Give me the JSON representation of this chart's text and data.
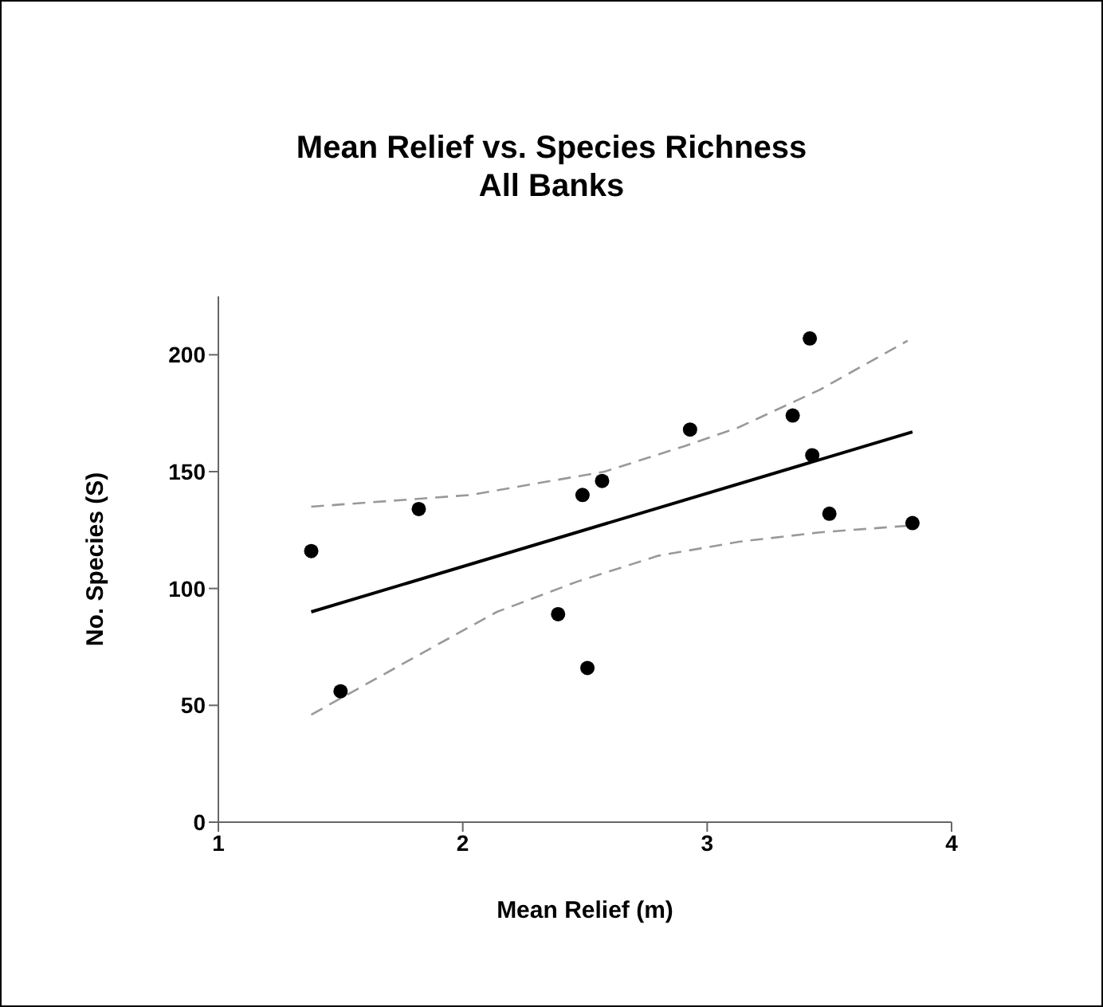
{
  "chart_data": {
    "type": "scatter",
    "title": "Mean Relief vs. Species Richness",
    "subtitle": "All Banks",
    "xlabel": "Mean Relief (m)",
    "ylabel": "No. Species (S)",
    "xlim": [
      1,
      4
    ],
    "ylim": [
      0,
      225
    ],
    "xticks": [
      1,
      2,
      3,
      4
    ],
    "yticks": [
      0,
      50,
      100,
      150,
      200
    ],
    "grid": false,
    "legend": false,
    "series": [
      {
        "type": "scatter",
        "color": "#000000",
        "marker": "circle",
        "x": [
          1.38,
          1.5,
          1.82,
          2.39,
          2.49,
          2.51,
          2.57,
          2.93,
          3.35,
          3.42,
          3.43,
          3.5,
          3.84
        ],
        "values": [
          116,
          56,
          134,
          89,
          140,
          66,
          146,
          168,
          174,
          207,
          157,
          132,
          128
        ]
      },
      {
        "type": "line",
        "color": "#000000",
        "line_style": "solid",
        "marker": "none",
        "x": [
          1.38,
          3.84
        ],
        "values": [
          90,
          167
        ]
      },
      {
        "type": "line",
        "color": "#999999",
        "line_style": "dashed",
        "marker": "none",
        "x": [
          1.38,
          2.03,
          2.58,
          2.91,
          3.13,
          3.46,
          3.82
        ],
        "values": [
          135,
          140,
          150,
          161,
          169,
          185,
          206
        ]
      },
      {
        "type": "line",
        "color": "#999999",
        "line_style": "dashed",
        "marker": "none",
        "x": [
          1.38,
          1.81,
          2.14,
          2.47,
          2.8,
          3.13,
          3.46,
          3.84
        ],
        "values": [
          46,
          71,
          90,
          103,
          114,
          120,
          124,
          127
        ]
      }
    ]
  }
}
